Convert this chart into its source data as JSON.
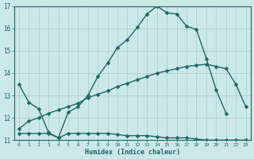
{
  "xlabel": "Humidex (Indice chaleur)",
  "bg_color": "#cde8e8",
  "grid_color": "#aacccc",
  "line_color": "#1a6868",
  "xlim": [
    -0.5,
    23.5
  ],
  "ylim": [
    11,
    17
  ],
  "yticks": [
    11,
    12,
    13,
    14,
    15,
    16,
    17
  ],
  "xticks": [
    0,
    1,
    2,
    3,
    4,
    5,
    6,
    7,
    8,
    9,
    10,
    11,
    12,
    13,
    14,
    15,
    16,
    17,
    18,
    19,
    20,
    21,
    22,
    23
  ],
  "line1_x": [
    0,
    1,
    2,
    3,
    4,
    5,
    6,
    7,
    8,
    9,
    10,
    11,
    12,
    13,
    14,
    15,
    16,
    17,
    18,
    19,
    20,
    21,
    22,
    23
  ],
  "line1_y": [
    13.5,
    12.7,
    12.4,
    11.35,
    11.1,
    12.25,
    12.5,
    13.0,
    13.85,
    14.45,
    15.15,
    15.5,
    16.05,
    16.65,
    17.0,
    16.7,
    16.65,
    16.1,
    15.95,
    14.65,
    13.25,
    12.2,
    null,
    null
  ],
  "line2_x": [
    0,
    1,
    2,
    3,
    4,
    5,
    6,
    7,
    8,
    9,
    10,
    11,
    12,
    13,
    14,
    15,
    16,
    17,
    18,
    19,
    20,
    21,
    22,
    23
  ],
  "line2_y": [
    11.3,
    11.3,
    11.3,
    11.3,
    11.1,
    11.3,
    11.3,
    11.3,
    11.3,
    11.3,
    11.25,
    11.2,
    11.2,
    11.2,
    11.15,
    11.1,
    11.1,
    11.1,
    11.05,
    11.0,
    11.0,
    11.0,
    11.0,
    11.0
  ],
  "line3_x": [
    0,
    1,
    2,
    3,
    4,
    5,
    6,
    7,
    8,
    9,
    10,
    11,
    12,
    13,
    14,
    15,
    16,
    17,
    18,
    19,
    20,
    21,
    22,
    23
  ],
  "line3_y": [
    11.5,
    11.85,
    12.0,
    12.2,
    12.35,
    12.5,
    12.65,
    12.9,
    13.05,
    13.2,
    13.4,
    13.55,
    13.7,
    13.85,
    14.0,
    14.1,
    14.2,
    14.3,
    14.35,
    14.4,
    14.3,
    14.2,
    13.5,
    12.5
  ],
  "marker_size": 2.5,
  "line_width": 1.0
}
